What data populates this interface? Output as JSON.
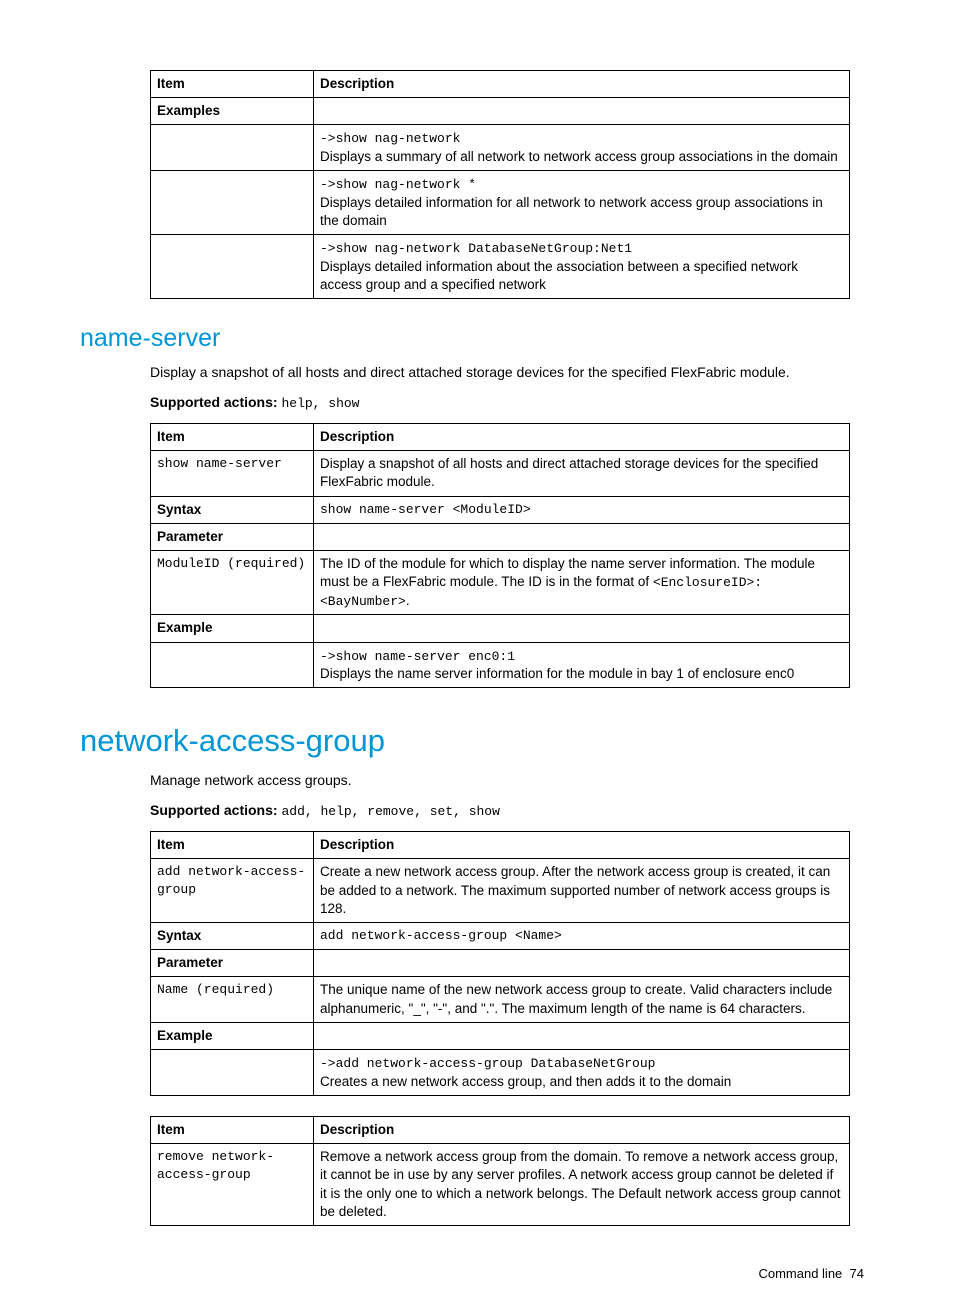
{
  "table1": {
    "h_item": "Item",
    "h_desc": "Description",
    "r_examples": "Examples",
    "ex1_cmd": "->show nag-network",
    "ex1_desc": "Displays a summary of all network to network access group associations in the domain",
    "ex2_cmd": "->show nag-network *",
    "ex2_desc": "Displays detailed information for all network to network access group associations in the domain",
    "ex3_cmd": "->show nag-network DatabaseNetGroup:Net1",
    "ex3_desc": "Displays detailed information about the association between a specified network access group and a specified network"
  },
  "ns": {
    "heading": "name-server",
    "intro": "Display a snapshot of all hosts and direct attached storage devices for the specified FlexFabric module.",
    "sa_label": "Supported actions",
    "sa_vals": "help, show",
    "h_item": "Item",
    "h_desc": "Description",
    "cmd": "show name-server",
    "cmd_desc": "Display a snapshot of all hosts and direct attached storage devices for the specified FlexFabric module.",
    "syntax_label": "Syntax",
    "syntax_val": "show name-server <ModuleID>",
    "param_label": "Parameter",
    "param_name": "ModuleID (required)",
    "param_desc_a": "The ID of the module for which to display the name server information. The module must be a FlexFabric module. The ID is in the format of ",
    "param_desc_b": "<EnclosureID>:<BayNumber>",
    "param_desc_c": ".",
    "example_label": "Example",
    "ex_cmd": "->show name-server enc0:1",
    "ex_desc": "Displays the name server information for the module in bay 1 of enclosure enc0"
  },
  "nag": {
    "heading": "network-access-group",
    "intro": "Manage network access groups.",
    "sa_label": "Supported actions",
    "sa_vals": "add, help, remove, set, show",
    "h_item": "Item",
    "h_desc": "Description",
    "add_cmd": "add network-access-group",
    "add_desc": "Create a new network access group. After the network access group is created, it can be added to a network. The maximum supported number of network access groups is 128.",
    "syntax_label": "Syntax",
    "syntax_val": "add network-access-group <Name>",
    "param_label": "Parameter",
    "param_name": "Name (required)",
    "param_desc": "The unique name of the new network access group to create. Valid characters include alphanumeric, \"_\", \"-\", and \".\". The maximum length of the name is 64 characters.",
    "example_label": "Example",
    "ex_cmd": "->add network-access-group DatabaseNetGroup",
    "ex_desc": "Creates a new network access group, and then adds it to the domain",
    "t2_h_item": "Item",
    "t2_h_desc": "Description",
    "rm_cmd": "remove network-access-group",
    "rm_desc": "Remove a network access group from the domain. To remove a network access group, it cannot be in use by any server profiles. A network access group cannot be deleted if it is the only one to which a network belongs. The Default network access group cannot be deleted."
  },
  "footer": {
    "label": "Command line",
    "page": "74"
  }
}
